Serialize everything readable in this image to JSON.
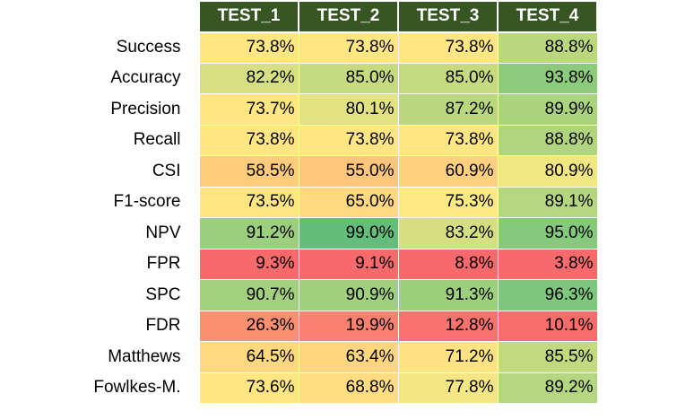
{
  "chart_data": {
    "type": "heatmap",
    "columns": [
      "TEST_1",
      "TEST_2",
      "TEST_3",
      "TEST_4"
    ],
    "rows": [
      {
        "label": "Success",
        "values": [
          "73.8%",
          "73.8%",
          "73.8%",
          "88.8%"
        ],
        "nums": [
          73.8,
          73.8,
          73.8,
          88.8
        ],
        "colors": [
          "#FFE682",
          "#FFE682",
          "#FFE682",
          "#B9D87E"
        ]
      },
      {
        "label": "Accuracy",
        "values": [
          "82.2%",
          "85.0%",
          "85.0%",
          "93.8%"
        ],
        "nums": [
          82.2,
          85.0,
          85.0,
          93.8
        ],
        "colors": [
          "#D6DF82",
          "#C6DB80",
          "#C6DB80",
          "#8CCB7C"
        ]
      },
      {
        "label": "Precision",
        "values": [
          "73.7%",
          "80.1%",
          "87.2%",
          "89.9%"
        ],
        "nums": [
          73.7,
          80.1,
          87.2,
          89.9
        ],
        "colors": [
          "#FFE682",
          "#E2E283",
          "#B8D77F",
          "#AAD37E"
        ]
      },
      {
        "label": "Recall",
        "values": [
          "73.8%",
          "73.8%",
          "73.8%",
          "88.8%"
        ],
        "nums": [
          73.8,
          73.8,
          73.8,
          88.8
        ],
        "colors": [
          "#FFE682",
          "#FFE682",
          "#FFE682",
          "#B1D57F"
        ]
      },
      {
        "label": "CSI",
        "values": [
          "58.5%",
          "55.0%",
          "60.9%",
          "80.9%"
        ],
        "nums": [
          58.5,
          55.0,
          60.9,
          80.9
        ],
        "colors": [
          "#FFCC7E",
          "#FEC57D",
          "#FED07F",
          "#F2E683"
        ]
      },
      {
        "label": "F1-score",
        "values": [
          "73.5%",
          "65.0%",
          "75.3%",
          "89.1%"
        ],
        "nums": [
          73.5,
          65.0,
          75.3,
          89.1
        ],
        "colors": [
          "#FFE682",
          "#FFD880",
          "#FEE983",
          "#B3D67F"
        ]
      },
      {
        "label": "NPV",
        "values": [
          "91.2%",
          "99.0%",
          "83.2%",
          "95.0%"
        ],
        "nums": [
          91.2,
          99.0,
          83.2,
          95.0
        ],
        "colors": [
          "#9CCF7D",
          "#63BE7B",
          "#D5DF82",
          "#85C97C"
        ]
      },
      {
        "label": "FPR",
        "values": [
          "9.3%",
          "9.1%",
          "8.8%",
          "3.8%"
        ],
        "nums": [
          9.3,
          9.1,
          8.8,
          3.8
        ],
        "colors": [
          "#F8696B",
          "#F8696B",
          "#F8696B",
          "#F8696B"
        ]
      },
      {
        "label": "SPC",
        "values": [
          "90.7%",
          "90.9%",
          "91.3%",
          "96.3%"
        ],
        "nums": [
          90.7,
          90.9,
          91.3,
          96.3
        ],
        "colors": [
          "#A2D07E",
          "#A0D07D",
          "#9ECF7D",
          "#7DC67C"
        ]
      },
      {
        "label": "FDR",
        "values": [
          "26.3%",
          "19.9%",
          "12.8%",
          "10.1%"
        ],
        "nums": [
          26.3,
          19.9,
          12.8,
          10.1
        ],
        "colors": [
          "#FB8F72",
          "#FA8070",
          "#F9726D",
          "#F86D6C"
        ]
      },
      {
        "label": "Matthews",
        "values": [
          "64.5%",
          "63.4%",
          "71.2%",
          "85.5%"
        ],
        "nums": [
          64.5,
          63.4,
          71.2,
          85.5
        ],
        "colors": [
          "#FFD880",
          "#FFD67F",
          "#FFE281",
          "#C2D97F"
        ]
      },
      {
        "label": "Fowlkes-M.",
        "values": [
          "73.6%",
          "68.8%",
          "77.8%",
          "89.2%"
        ],
        "nums": [
          73.6,
          68.8,
          77.8,
          89.2
        ],
        "colors": [
          "#FFE682",
          "#FFDC80",
          "#F4E683",
          "#B3D67F"
        ]
      }
    ]
  }
}
